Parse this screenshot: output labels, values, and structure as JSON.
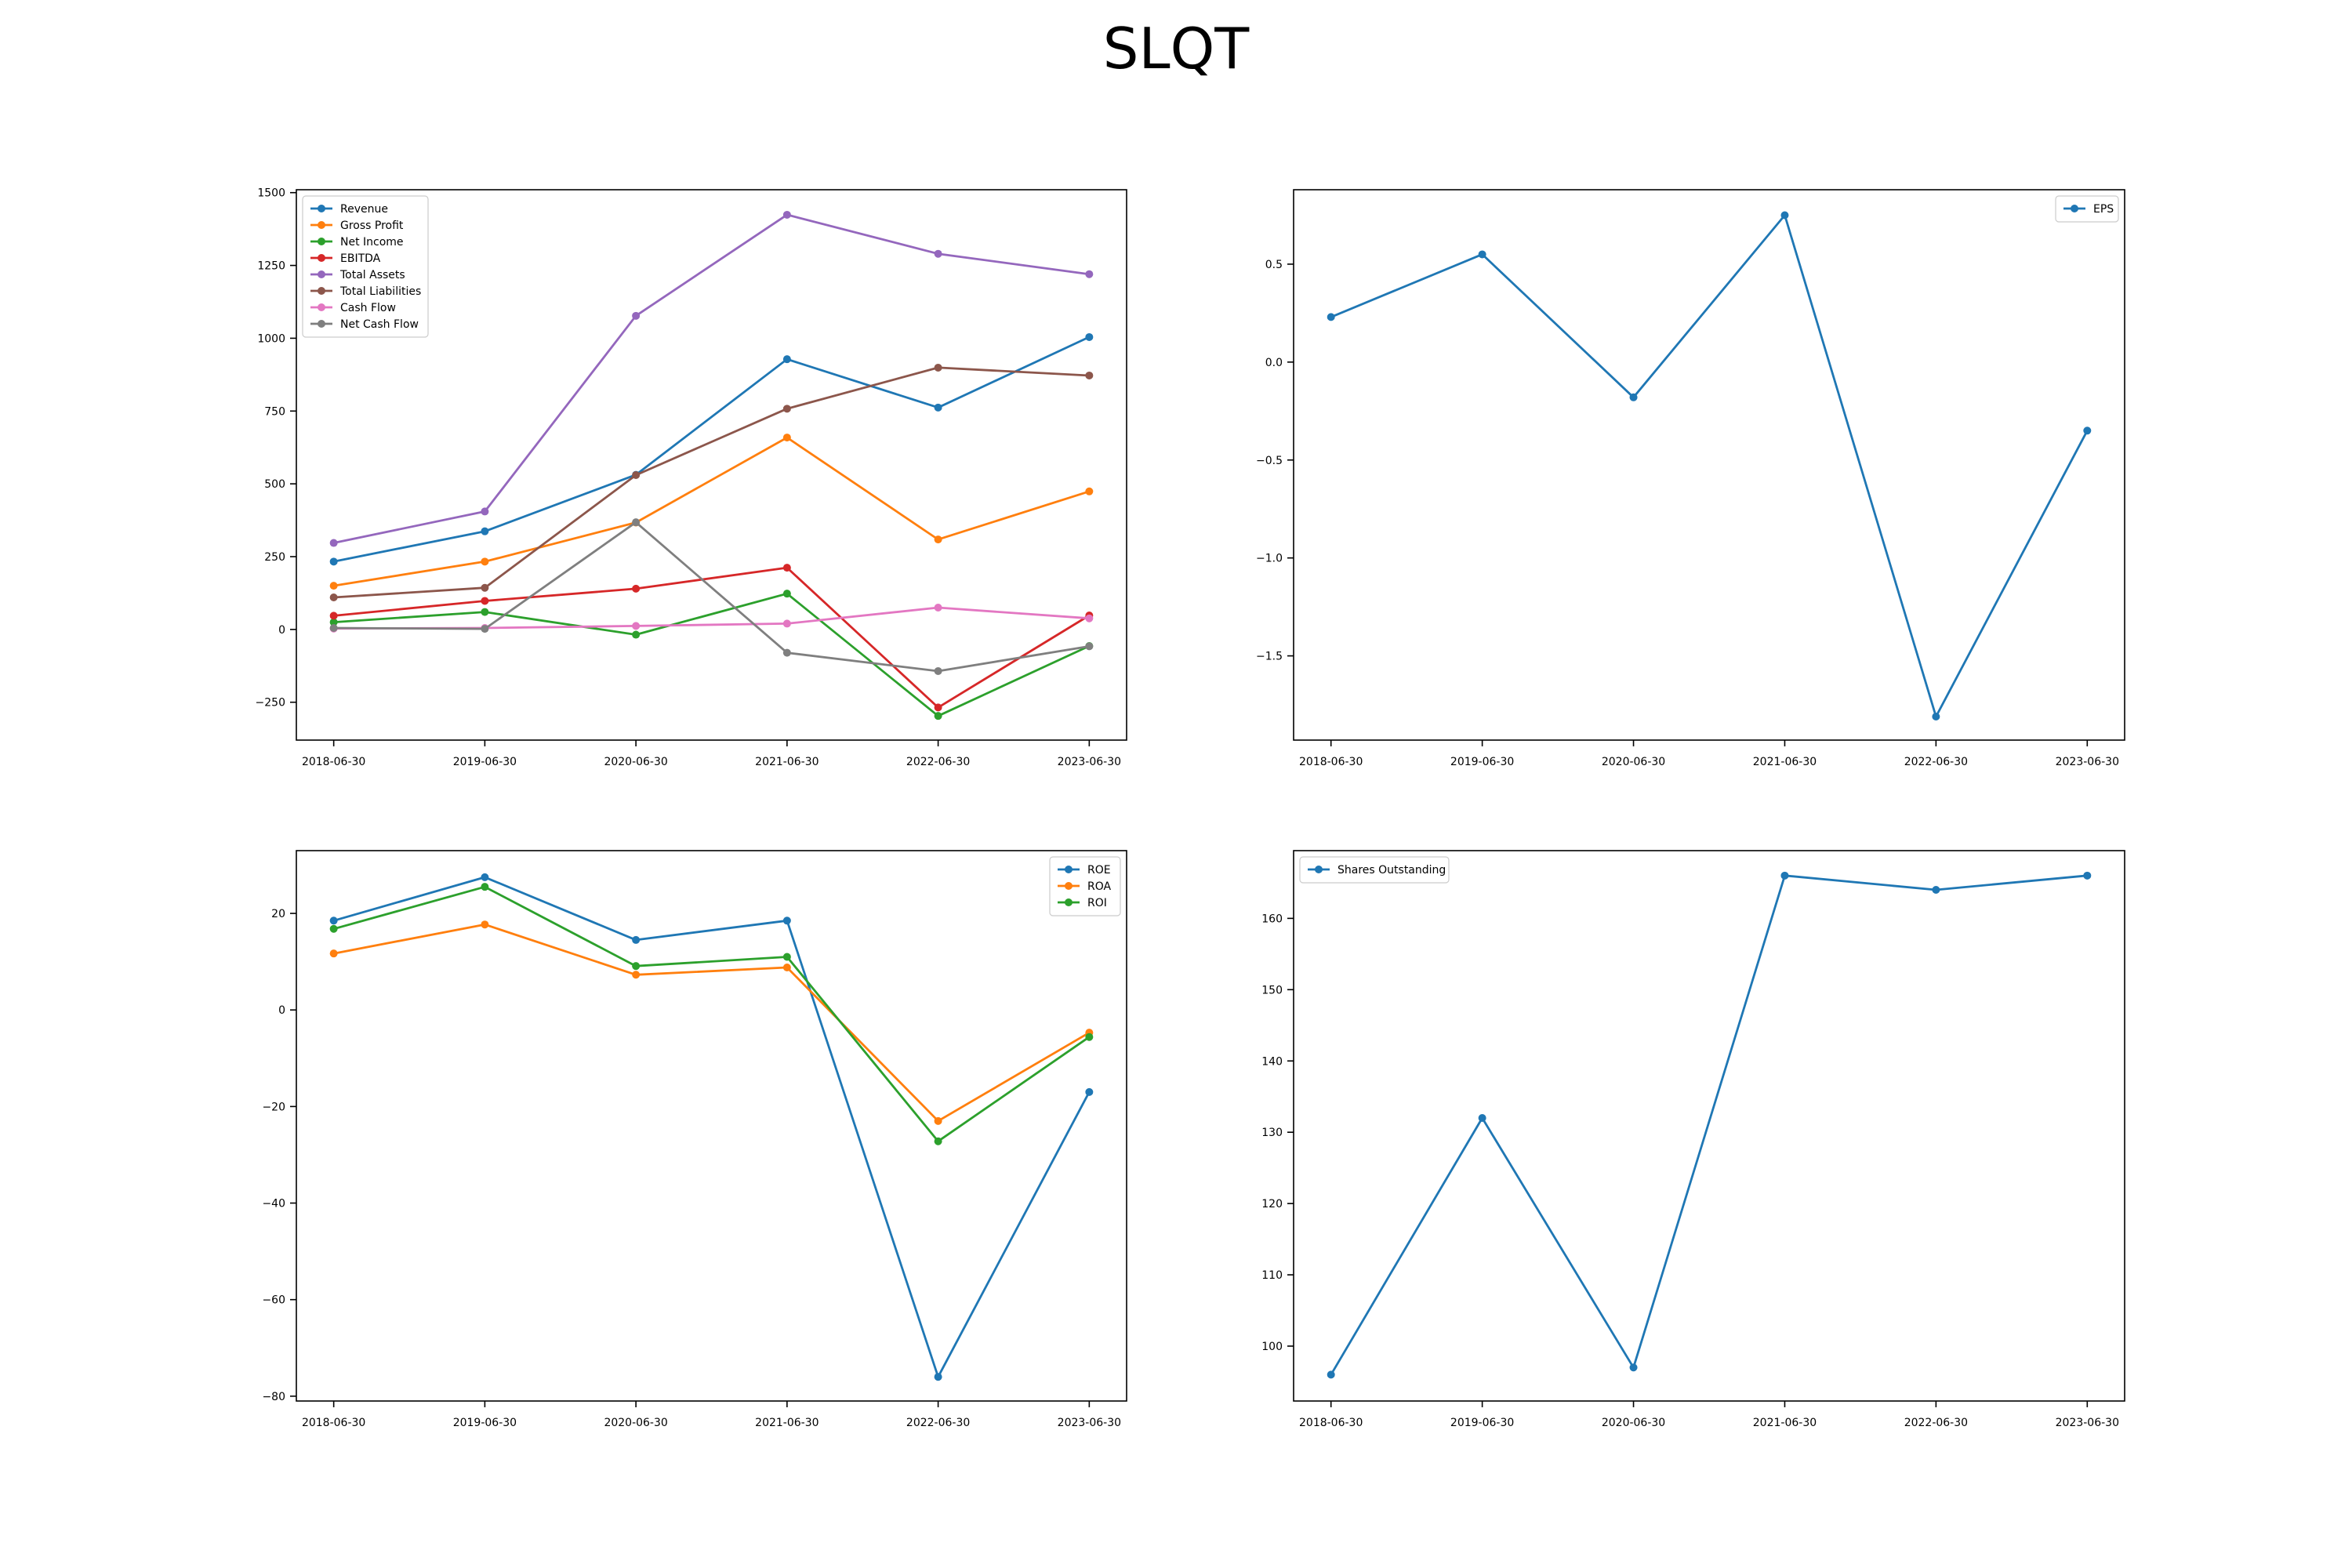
{
  "title": "SLQT",
  "chart_data": [
    {
      "type": "line",
      "x": [
        "2018-06-30",
        "2019-06-30",
        "2020-06-30",
        "2021-06-30",
        "2022-06-30",
        "2023-06-30"
      ],
      "ylim": [
        -380,
        1510
      ],
      "yticks": [
        -250,
        0,
        250,
        500,
        750,
        1000,
        1250,
        1500
      ],
      "grid": false,
      "legend": "top-left",
      "series": [
        {
          "name": "Revenue",
          "color": "#1f77b4",
          "values": [
            233,
            337,
            531,
            928,
            762,
            1004
          ]
        },
        {
          "name": "Gross Profit",
          "color": "#ff7f0e",
          "values": [
            150,
            233,
            367,
            659,
            309,
            474
          ]
        },
        {
          "name": "Net Income",
          "color": "#2ca02c",
          "values": [
            25,
            60,
            -18,
            123,
            -297,
            -57
          ]
        },
        {
          "name": "EBITDA",
          "color": "#d62728",
          "values": [
            47,
            98,
            140,
            212,
            -268,
            48
          ]
        },
        {
          "name": "Total Assets",
          "color": "#9467bd",
          "values": [
            297,
            405,
            1077,
            1424,
            1290,
            1220
          ]
        },
        {
          "name": "Total Liabilities",
          "color": "#8c564b",
          "values": [
            110,
            143,
            530,
            758,
            899,
            872
          ]
        },
        {
          "name": "Cash Flow",
          "color": "#e377c2",
          "values": [
            3,
            5,
            12,
            20,
            75,
            38
          ]
        },
        {
          "name": "Net Cash Flow",
          "color": "#7f7f7f",
          "values": [
            5,
            2,
            368,
            -80,
            -143,
            -58
          ]
        }
      ]
    },
    {
      "type": "line",
      "x": [
        "2018-06-30",
        "2019-06-30",
        "2020-06-30",
        "2021-06-30",
        "2022-06-30",
        "2023-06-30"
      ],
      "ylim": [
        -1.93,
        0.88
      ],
      "yticks": [
        -1.5,
        -1.0,
        -0.5,
        0.0,
        0.5
      ],
      "grid": false,
      "legend": "top-right",
      "series": [
        {
          "name": "EPS",
          "color": "#1f77b4",
          "values": [
            0.23,
            0.55,
            -0.18,
            0.75,
            -1.81,
            -0.35
          ]
        }
      ]
    },
    {
      "type": "line",
      "x": [
        "2018-06-30",
        "2019-06-30",
        "2020-06-30",
        "2021-06-30",
        "2022-06-30",
        "2023-06-30"
      ],
      "ylim": [
        -81,
        33
      ],
      "yticks": [
        -80,
        -60,
        -40,
        -20,
        0,
        20
      ],
      "grid": false,
      "legend": "top-right",
      "series": [
        {
          "name": "ROE",
          "color": "#1f77b4",
          "values": [
            18.5,
            27.5,
            14.5,
            18.5,
            -76,
            -17
          ]
        },
        {
          "name": "ROA",
          "color": "#ff7f0e",
          "values": [
            11.7,
            17.7,
            7.3,
            8.8,
            -23,
            -4.7
          ]
        },
        {
          "name": "ROI",
          "color": "#2ca02c",
          "values": [
            16.8,
            25.5,
            9.1,
            11,
            -27.2,
            -5.6
          ]
        }
      ]
    },
    {
      "type": "line",
      "x": [
        "2018-06-30",
        "2019-06-30",
        "2020-06-30",
        "2021-06-30",
        "2022-06-30",
        "2023-06-30"
      ],
      "ylim": [
        92.3,
        169.5
      ],
      "yticks": [
        100,
        110,
        120,
        130,
        140,
        150,
        160
      ],
      "grid": false,
      "legend": "top-left",
      "series": [
        {
          "name": "Shares Outstanding",
          "color": "#1f77b4",
          "values": [
            96,
            132,
            97,
            166,
            164,
            166
          ]
        }
      ]
    }
  ]
}
